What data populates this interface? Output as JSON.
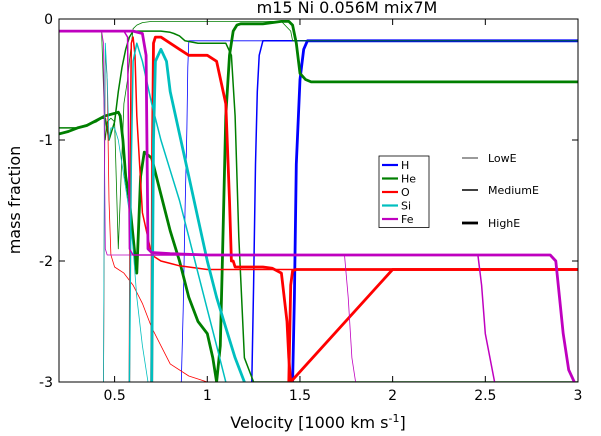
{
  "chart_data": {
    "type": "line",
    "title": "m15 Ni 0.056M mix7M",
    "xlabel": "Velocity [1000 km s",
    "xlabel_sup": "-1",
    "xlabel_end": "]",
    "ylabel": "mass fraction",
    "xlim": [
      0.2,
      3.0
    ],
    "ylim": [
      -3,
      0
    ],
    "y_scale": "log10 (tick labels show exponents)",
    "grid": false,
    "xticks": [
      0.5,
      1,
      1.5,
      2,
      2.5,
      3
    ],
    "xtick_labels": [
      "0.5",
      "1",
      "1.5",
      "2",
      "2.5",
      "3"
    ],
    "yticks": [
      0,
      -1,
      -2,
      -3
    ],
    "ytick_labels": [
      "0",
      "-1",
      "-2",
      "-3"
    ],
    "legend_elements": {
      "position": "right-middle",
      "entries": [
        {
          "label": "H",
          "color": "#0000ff"
        },
        {
          "label": "He",
          "color": "#007f00"
        },
        {
          "label": "O",
          "color": "#ff0000"
        },
        {
          "label": "Si",
          "color": "#00bfbf"
        },
        {
          "label": "Fe",
          "color": "#bf00bf"
        }
      ]
    },
    "legend_energies": {
      "position": "right-middle",
      "entries": [
        {
          "label": "LowE",
          "linewidth": "thin"
        },
        {
          "label": "MediumE",
          "linewidth": "medium"
        },
        {
          "label": "HighE",
          "linewidth": "thick"
        }
      ]
    },
    "series": [
      {
        "element": "H",
        "energy": "LowE",
        "color": "#0000ff",
        "width": 0.8,
        "x": [
          0.86,
          0.87,
          0.88,
          0.89,
          0.895,
          0.9,
          3.0
        ],
        "y": [
          -3.0,
          -2.4,
          -1.6,
          -0.9,
          -0.4,
          -0.18,
          -0.18
        ]
      },
      {
        "element": "H",
        "energy": "MediumE",
        "color": "#0000ff",
        "width": 1.5,
        "x": [
          1.24,
          1.25,
          1.26,
          1.27,
          1.28,
          1.3,
          3.0
        ],
        "y": [
          -3.0,
          -2.2,
          -1.2,
          -0.6,
          -0.3,
          -0.18,
          -0.18
        ]
      },
      {
        "element": "H",
        "energy": "HighE",
        "color": "#0000ff",
        "width": 2.8,
        "x": [
          1.46,
          1.47,
          1.48,
          1.5,
          1.52,
          1.54,
          3.0
        ],
        "y": [
          -3.0,
          -2.3,
          -1.2,
          -0.5,
          -0.25,
          -0.18,
          -0.18
        ]
      },
      {
        "element": "He",
        "energy": "LowE",
        "color": "#007f00",
        "width": 0.8,
        "x": [
          0.2,
          0.3,
          0.4,
          0.43,
          0.45,
          0.46,
          0.48,
          0.5,
          0.52,
          0.55,
          0.57,
          0.58,
          0.6,
          0.62,
          0.65,
          0.7,
          0.8,
          0.9,
          1.0,
          1.1,
          1.3,
          1.4,
          1.45,
          1.46,
          3.0
        ],
        "y": [
          -0.1,
          -0.1,
          -0.1,
          -0.1,
          -1.0,
          -0.85,
          -0.82,
          -0.85,
          -1.9,
          -0.7,
          -0.5,
          -0.35,
          -0.08,
          -0.05,
          -0.03,
          -0.02,
          -0.02,
          -0.02,
          -0.02,
          -0.02,
          -0.02,
          -0.02,
          -0.1,
          -0.18,
          -0.18
        ]
      },
      {
        "element": "He",
        "energy": "MediumE",
        "color": "#007f00",
        "width": 1.5,
        "x": [
          0.2,
          0.3,
          0.4,
          0.43,
          0.45,
          0.47,
          0.5,
          0.52,
          0.54,
          0.56,
          0.58,
          0.6,
          0.62,
          0.65,
          0.7,
          0.75,
          0.8,
          0.82,
          0.85,
          0.88,
          0.95,
          1.0,
          1.05,
          1.1,
          1.13,
          1.15,
          1.17,
          1.2,
          1.25,
          3.0
        ],
        "y": [
          -0.9,
          -0.9,
          -0.85,
          -0.82,
          -0.82,
          -1.0,
          -0.85,
          -0.6,
          -0.4,
          -0.25,
          -0.15,
          -0.1,
          -0.1,
          -0.1,
          -0.1,
          -0.1,
          -0.11,
          -0.12,
          -0.14,
          -0.18,
          -0.2,
          -0.2,
          -0.2,
          -0.2,
          -0.3,
          -0.8,
          -1.8,
          -2.8,
          -3.0,
          -3.0
        ]
      },
      {
        "element": "He",
        "energy": "HighE",
        "color": "#007f00",
        "width": 2.8,
        "x": [
          0.2,
          0.25,
          0.3,
          0.35,
          0.4,
          0.45,
          0.5,
          0.52,
          0.53,
          0.545,
          0.56,
          0.58,
          0.6,
          0.62,
          0.64,
          0.66,
          0.7,
          0.75,
          0.8,
          0.85,
          0.9,
          0.95,
          1.0,
          1.03,
          1.05,
          1.07,
          1.08,
          1.1,
          1.12,
          1.14,
          1.16,
          1.18,
          1.2,
          1.25,
          1.3,
          1.35,
          1.4,
          1.44,
          1.46,
          1.48,
          1.5,
          1.53,
          1.56,
          1.6,
          2.0,
          2.5,
          3.0
        ],
        "y": [
          -0.95,
          -0.93,
          -0.9,
          -0.88,
          -0.84,
          -0.8,
          -0.78,
          -0.77,
          -0.8,
          -1.0,
          -1.3,
          -1.5,
          -1.8,
          -2.1,
          -1.3,
          -1.1,
          -1.15,
          -1.45,
          -1.75,
          -2.0,
          -2.3,
          -2.5,
          -2.6,
          -2.8,
          -3.0,
          -2.7,
          -2.1,
          -0.8,
          -0.3,
          -0.1,
          -0.05,
          -0.04,
          -0.04,
          -0.04,
          -0.04,
          -0.03,
          -0.02,
          -0.02,
          -0.05,
          -0.2,
          -0.45,
          -0.5,
          -0.52,
          -0.52,
          -0.52,
          -0.52,
          -0.52
        ]
      },
      {
        "element": "O",
        "energy": "LowE",
        "color": "#ff0000",
        "width": 0.8,
        "x": [
          0.44,
          0.445,
          0.45,
          0.46,
          0.47,
          0.48,
          0.5,
          0.55,
          0.6,
          0.65,
          0.7,
          0.75,
          0.8,
          0.9,
          1.0,
          1.5,
          2.0,
          2.5,
          3.0
        ],
        "y": [
          -3.0,
          -1.5,
          -0.25,
          -0.5,
          -1.5,
          -1.95,
          -2.05,
          -2.1,
          -2.2,
          -2.35,
          -2.55,
          -2.7,
          -2.85,
          -2.95,
          -3.0,
          -3.0,
          -3.0,
          -3.0,
          -3.0
        ]
      },
      {
        "element": "O",
        "energy": "MediumE",
        "color": "#ff0000",
        "width": 1.5,
        "x": [
          0.58,
          0.585,
          0.59,
          0.6,
          0.61,
          0.62,
          0.65,
          0.7,
          0.75,
          0.8,
          0.85,
          0.9,
          0.95,
          1.0,
          1.05,
          1.1,
          1.15,
          1.2,
          1.25,
          1.3,
          1.4,
          1.5,
          2.0,
          2.5,
          3.0
        ],
        "y": [
          -3.0,
          -1.0,
          -0.2,
          -0.15,
          -0.3,
          -0.8,
          -1.6,
          -1.95,
          -2.0,
          -2.02,
          -2.04,
          -2.05,
          -2.06,
          -2.07,
          -2.07,
          -2.07,
          -2.07,
          -2.07,
          -2.07,
          -2.07,
          -2.07,
          -2.07,
          -2.07,
          -2.07,
          -2.07
        ]
      },
      {
        "element": "O",
        "energy": "HighE",
        "color": "#ff0000",
        "width": 2.8,
        "x": [
          0.7,
          0.705,
          0.71,
          0.72,
          0.75,
          0.8,
          0.85,
          0.9,
          0.95,
          1.0,
          1.05,
          1.1,
          1.12,
          1.13,
          1.14,
          1.15,
          1.2,
          1.3,
          1.35,
          1.4,
          1.43,
          1.44,
          1.45,
          2.0,
          2.5,
          2.85,
          2.9,
          3.0
        ],
        "y": [
          -3.0,
          -1.0,
          -0.2,
          -0.15,
          -0.15,
          -0.2,
          -0.25,
          -0.3,
          -0.3,
          -0.3,
          -0.35,
          -0.7,
          -1.5,
          -2.0,
          -2.0,
          -2.05,
          -2.05,
          -2.05,
          -2.06,
          -2.1,
          -2.5,
          -2.8,
          -3.0,
          -2.07,
          -2.07,
          -2.07,
          -2.07,
          -2.07
        ]
      },
      {
        "element": "O",
        "energy": "HighE-tail",
        "color": "#ff0000",
        "width": 2.8,
        "x": [
          1.44,
          1.45,
          1.46,
          1.48,
          1.5,
          2.0,
          2.5,
          2.85,
          2.9,
          3.0
        ],
        "y": [
          -3.0,
          -2.2,
          -2.08,
          -2.07,
          -2.07,
          -2.07,
          -2.07,
          -2.07,
          -2.07,
          -2.07
        ]
      },
      {
        "element": "Si",
        "energy": "LowE",
        "color": "#00bfbf",
        "width": 0.8,
        "x": [
          0.44,
          0.445,
          0.45,
          0.46,
          0.47,
          0.48,
          0.5,
          0.52,
          0.55,
          0.58,
          0.6,
          0.62,
          0.65,
          0.68
        ],
        "y": [
          -3.0,
          -1.2,
          -0.2,
          -0.5,
          -1.0,
          -0.9,
          -0.9,
          -1.0,
          -1.3,
          -1.6,
          -1.9,
          -2.3,
          -2.7,
          -3.0
        ]
      },
      {
        "element": "Si",
        "energy": "MediumE",
        "color": "#00bfbf",
        "width": 1.5,
        "x": [
          0.58,
          0.59,
          0.6,
          0.62,
          0.65,
          0.7,
          0.75,
          0.8,
          0.85,
          0.9,
          0.95,
          1.0,
          1.05,
          1.1
        ],
        "y": [
          -3.0,
          -1.2,
          -0.35,
          -0.2,
          -0.35,
          -0.7,
          -1.0,
          -1.25,
          -1.5,
          -1.8,
          -2.1,
          -2.4,
          -2.7,
          -3.0
        ]
      },
      {
        "element": "Si",
        "energy": "HighE",
        "color": "#00bfbf",
        "width": 2.8,
        "x": [
          0.7,
          0.71,
          0.72,
          0.75,
          0.78,
          0.8,
          0.85,
          0.9,
          0.95,
          1.0,
          1.05,
          1.1,
          1.15,
          1.2
        ],
        "y": [
          -3.0,
          -1.0,
          -0.35,
          -0.25,
          -0.35,
          -0.6,
          -0.95,
          -1.3,
          -1.65,
          -2.0,
          -2.3,
          -2.55,
          -2.8,
          -3.0
        ]
      },
      {
        "element": "Fe",
        "energy": "LowE",
        "color": "#bf00bf",
        "width": 0.8,
        "x": [
          0.2,
          0.3,
          0.4,
          0.43,
          0.44,
          0.45,
          0.46,
          0.48,
          0.5,
          0.6,
          0.8,
          1.0,
          1.2,
          1.4,
          1.6,
          1.74,
          1.76,
          1.78,
          1.8
        ],
        "y": [
          -0.1,
          -0.1,
          -0.1,
          -0.1,
          -0.2,
          -1.9,
          -1.95,
          -1.95,
          -1.95,
          -1.95,
          -1.95,
          -1.95,
          -1.95,
          -1.95,
          -1.95,
          -1.95,
          -2.3,
          -2.8,
          -3.0
        ]
      },
      {
        "element": "Fe",
        "energy": "MediumE",
        "color": "#bf00bf",
        "width": 1.5,
        "x": [
          0.2,
          0.3,
          0.4,
          0.5,
          0.55,
          0.57,
          0.58,
          0.6,
          0.8,
          1.0,
          1.5,
          2.0,
          2.4,
          2.46,
          2.48,
          2.5,
          2.55
        ],
        "y": [
          -0.1,
          -0.1,
          -0.1,
          -0.1,
          -0.1,
          -0.15,
          -1.9,
          -1.95,
          -1.95,
          -1.95,
          -1.95,
          -1.95,
          -1.95,
          -1.95,
          -2.2,
          -2.6,
          -3.0
        ]
      },
      {
        "element": "Fe",
        "energy": "HighE",
        "color": "#bf00bf",
        "width": 2.8,
        "x": [
          0.2,
          0.3,
          0.4,
          0.5,
          0.6,
          0.65,
          0.67,
          0.68,
          0.7,
          0.8,
          1.0,
          1.5,
          2.0,
          2.5,
          2.85,
          2.88,
          2.9,
          2.92,
          2.95,
          2.98
        ],
        "y": [
          -0.1,
          -0.1,
          -0.1,
          -0.1,
          -0.1,
          -0.12,
          -0.3,
          -1.9,
          -1.93,
          -1.94,
          -1.95,
          -1.95,
          -1.95,
          -1.95,
          -1.95,
          -2.0,
          -2.3,
          -2.6,
          -2.9,
          -3.0
        ]
      }
    ]
  }
}
